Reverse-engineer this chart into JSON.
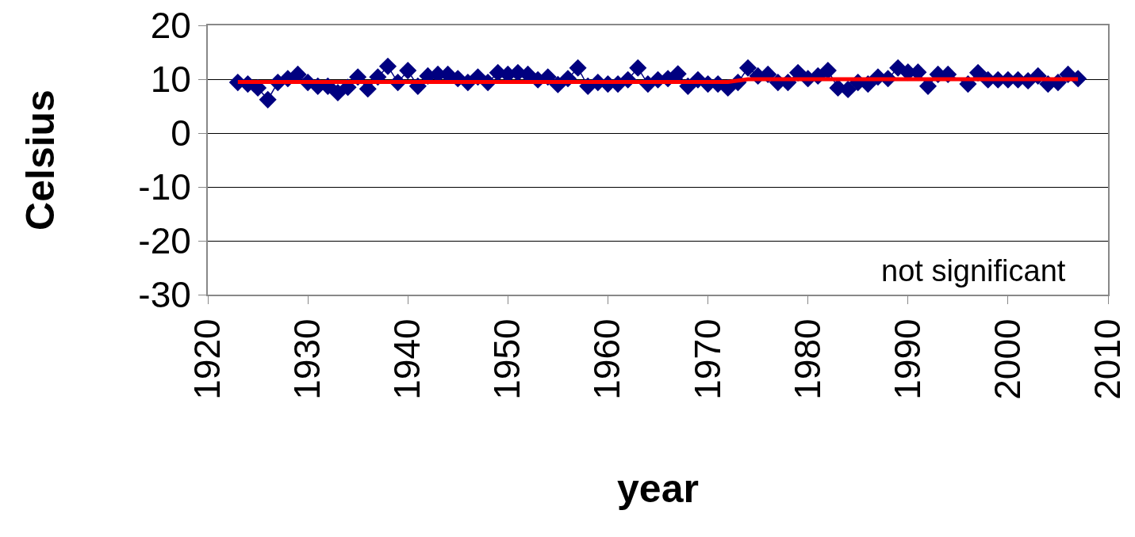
{
  "chart_data": {
    "type": "line",
    "xlabel": "year",
    "ylabel": "Celsius",
    "xlim": [
      1920,
      2010
    ],
    "xticks": [
      1920,
      1930,
      1940,
      1950,
      1960,
      1970,
      1980,
      1990,
      2000,
      2010
    ],
    "ylim": [
      -30,
      20
    ],
    "yticks": [
      -30,
      -20,
      -10,
      0,
      10,
      20
    ],
    "grid": "y",
    "marker": "diamond",
    "line_style": "solid",
    "annotations": [
      "not significant"
    ],
    "series": [
      {
        "color": "#000080",
        "x": [
          1923,
          1924,
          1925,
          1926,
          1927,
          1928,
          1929,
          1930,
          1931,
          1932,
          1933,
          1934,
          1935,
          1936,
          1937,
          1938,
          1939,
          1940,
          1941,
          1942,
          1943,
          1944,
          1945,
          1946,
          1947,
          1948,
          1949,
          1950,
          1951,
          1952,
          1953,
          1954,
          1955,
          1956,
          1957,
          1958,
          1959,
          1960,
          1961,
          1962,
          1963,
          1964,
          1965,
          1966,
          1967,
          1968,
          1969,
          1970,
          1971,
          1972,
          1973,
          1974,
          1975,
          1976,
          1977,
          1978,
          1979,
          1980,
          1981,
          1982,
          1983,
          1984,
          1985,
          1986,
          1987,
          1988,
          1989,
          1990,
          1991,
          1992,
          1993,
          1994,
          1996,
          1997,
          1998,
          1999,
          2000,
          2001,
          2002,
          2003,
          2004,
          2005,
          2006,
          2007
        ],
        "values": [
          9.4,
          9.1,
          8.4,
          6.2,
          9.4,
          10.1,
          10.9,
          9.4,
          8.7,
          8.7,
          7.5,
          8.5,
          10.4,
          8.2,
          10.4,
          12.4,
          9.4,
          11.6,
          8.7,
          10.6,
          10.9,
          10.9,
          10.1,
          9.4,
          10.4,
          9.4,
          11.2,
          10.9,
          11.2,
          10.9,
          9.9,
          10.4,
          9,
          10.1,
          12.1,
          8.7,
          9.4,
          9.1,
          9.1,
          9.9,
          12.1,
          9.1,
          9.9,
          10.1,
          11,
          8.7,
          9.9,
          9.1,
          9.1,
          8.4,
          9.4,
          12.1,
          10.6,
          10.9,
          9.4,
          9.4,
          11.2,
          10.1,
          10.6,
          11.6,
          8.4,
          8.1,
          9.4,
          9.1,
          10.4,
          10.1,
          12.1,
          11.3,
          11.3,
          8.7,
          10.9,
          10.9,
          9.1,
          11.2,
          9.9,
          9.9,
          9.9,
          9.9,
          9.7,
          10.6,
          9.1,
          9.4,
          10.9,
          10.1
        ]
      },
      {
        "type": "line",
        "marker": "none",
        "color": "#ff0000",
        "x": [
          1923,
          1972,
          1974,
          2007
        ],
        "values": [
          9.5,
          9.5,
          10,
          10
        ]
      }
    ]
  }
}
